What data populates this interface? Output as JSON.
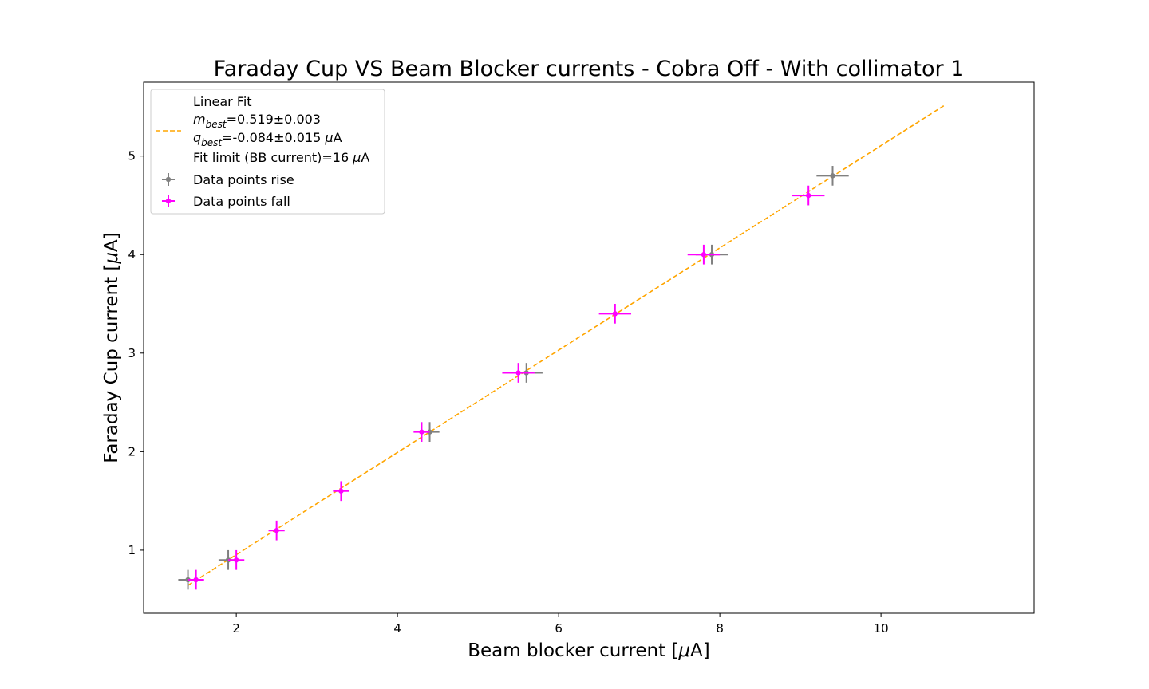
{
  "chart_data": {
    "type": "scatter",
    "title": "Faraday Cup VS Beam Blocker currents - Cobra Off - With collimator 1",
    "xlabel_text": "Beam blocker current [",
    "xlabel_mu": "μ",
    "xlabel_unit": "A]",
    "ylabel_text": "Faraday Cup current [",
    "ylabel_mu": "μ",
    "ylabel_unit": "A]",
    "xlim": [
      0.85,
      11.9
    ],
    "ylim": [
      0.36,
      5.75
    ],
    "xticks": [
      "2",
      "4",
      "6",
      "8",
      "10"
    ],
    "yticks": [
      "1",
      "2",
      "3",
      "4",
      "5"
    ],
    "grid": false,
    "legend_position": "upper-left",
    "fit": {
      "legend_title": "Linear Fit",
      "m_symbol": "m",
      "m_sub": "best",
      "m_value": "=0.519±0.003",
      "q_symbol": "q",
      "q_sub": "best",
      "q_value": "=-0.084±0.015 ",
      "q_mu": "μ",
      "q_unit": "A",
      "limit_text": "Fit limit (BB current)=16 ",
      "limit_mu": "μ",
      "limit_unit": "A",
      "slope": 0.519,
      "intercept": -0.084,
      "x_range": [
        1.4,
        10.8
      ],
      "color": "#ffa500"
    },
    "series": [
      {
        "name": "Data points rise",
        "color": "#808080",
        "points": [
          {
            "x": 1.4,
            "y": 0.7,
            "xerr": 0.12,
            "yerr": 0.1
          },
          {
            "x": 1.9,
            "y": 0.9,
            "xerr": 0.12,
            "yerr": 0.1
          },
          {
            "x": 4.4,
            "y": 2.2,
            "xerr": 0.12,
            "yerr": 0.1
          },
          {
            "x": 5.6,
            "y": 2.8,
            "xerr": 0.2,
            "yerr": 0.1
          },
          {
            "x": 7.9,
            "y": 4.0,
            "xerr": 0.2,
            "yerr": 0.1
          },
          {
            "x": 9.4,
            "y": 4.8,
            "xerr": 0.2,
            "yerr": 0.1
          }
        ]
      },
      {
        "name": "Data points fall",
        "color": "#ff00ff",
        "points": [
          {
            "x": 1.5,
            "y": 0.7,
            "xerr": 0.1,
            "yerr": 0.1
          },
          {
            "x": 2.0,
            "y": 0.9,
            "xerr": 0.1,
            "yerr": 0.1
          },
          {
            "x": 2.5,
            "y": 1.2,
            "xerr": 0.1,
            "yerr": 0.1
          },
          {
            "x": 3.3,
            "y": 1.6,
            "xerr": 0.1,
            "yerr": 0.1
          },
          {
            "x": 4.3,
            "y": 2.2,
            "xerr": 0.1,
            "yerr": 0.1
          },
          {
            "x": 5.5,
            "y": 2.8,
            "xerr": 0.2,
            "yerr": 0.1
          },
          {
            "x": 6.7,
            "y": 3.4,
            "xerr": 0.2,
            "yerr": 0.1
          },
          {
            "x": 7.8,
            "y": 4.0,
            "xerr": 0.2,
            "yerr": 0.1
          },
          {
            "x": 9.1,
            "y": 4.6,
            "xerr": 0.2,
            "yerr": 0.1
          }
        ]
      }
    ]
  }
}
